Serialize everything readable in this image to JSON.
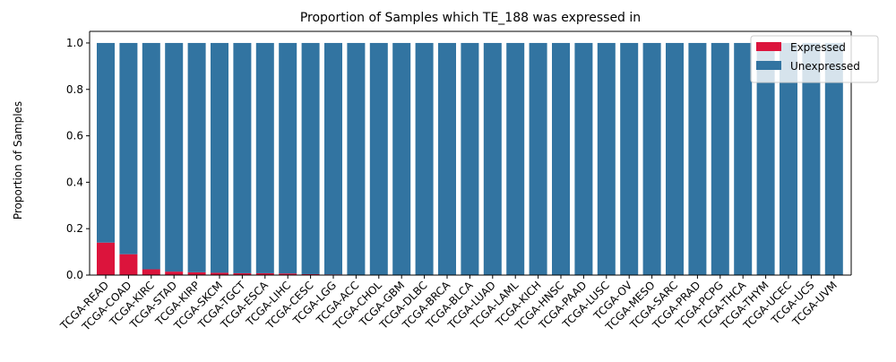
{
  "chart_data": {
    "type": "bar",
    "stacked": true,
    "title": "Proportion of Samples which TE_188 was expressed in",
    "xlabel": "",
    "ylabel": "Proportion of Samples",
    "ylim": [
      0,
      1.05
    ],
    "yticks": [
      "0.0",
      "0.2",
      "0.4",
      "0.6",
      "0.8",
      "1.0"
    ],
    "legend_position": "top-right",
    "grid": false,
    "categories": [
      "TCGA-READ",
      "TCGA-COAD",
      "TCGA-KIRC",
      "TCGA-STAD",
      "TCGA-KIRP",
      "TCGA-SKCM",
      "TCGA-TGCT",
      "TCGA-ESCA",
      "TCGA-LIHC",
      "TCGA-CESC",
      "TCGA-LGG",
      "TCGA-ACC",
      "TCGA-CHOL",
      "TCGA-GBM",
      "TCGA-DLBC",
      "TCGA-BRCA",
      "TCGA-BLCA",
      "TCGA-LUAD",
      "TCGA-LAML",
      "TCGA-KICH",
      "TCGA-HNSC",
      "TCGA-PAAD",
      "TCGA-LUSC",
      "TCGA-OV",
      "TCGA-MESO",
      "TCGA-SARC",
      "TCGA-PRAD",
      "TCGA-PCPG",
      "TCGA-THCA",
      "TCGA-THYM",
      "TCGA-UCEC",
      "TCGA-UCS",
      "TCGA-UVM"
    ],
    "series": [
      {
        "name": "Expressed",
        "color": "#dc143c",
        "values": [
          0.14,
          0.09,
          0.025,
          0.015,
          0.012,
          0.01,
          0.008,
          0.008,
          0.007,
          0.004,
          0.003,
          0,
          0,
          0,
          0,
          0,
          0,
          0,
          0,
          0,
          0,
          0,
          0,
          0,
          0,
          0,
          0,
          0,
          0,
          0,
          0,
          0,
          0
        ]
      },
      {
        "name": "Unexpressed",
        "color": "#3274a1",
        "values": [
          0.86,
          0.91,
          0.975,
          0.985,
          0.988,
          0.99,
          0.992,
          0.992,
          0.993,
          0.996,
          0.997,
          1,
          1,
          1,
          1,
          1,
          1,
          1,
          1,
          1,
          1,
          1,
          1,
          1,
          1,
          1,
          1,
          1,
          1,
          1,
          1,
          1,
          1
        ]
      }
    ]
  }
}
